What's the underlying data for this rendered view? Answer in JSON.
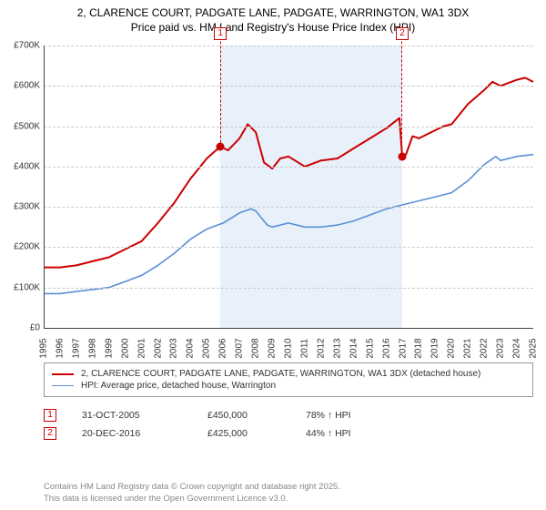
{
  "title": {
    "line1": "2, CLARENCE COURT, PADGATE LANE, PADGATE, WARRINGTON, WA1 3DX",
    "line2": "Price paid vs. HM Land Registry's House Price Index (HPI)"
  },
  "chart": {
    "type": "line",
    "background_color": "#ffffff",
    "grid_color": "#cccccc",
    "axis_color": "#444444",
    "tick_fontsize": 10,
    "ylim": [
      0,
      700000
    ],
    "ytick_step": 100000,
    "ytick_labels": [
      "£0",
      "£100K",
      "£200K",
      "£300K",
      "£400K",
      "£500K",
      "£600K",
      "£700K"
    ],
    "xlim": [
      1995,
      2025
    ],
    "xticks": [
      1995,
      1996,
      1997,
      1998,
      1999,
      2000,
      2001,
      2002,
      2003,
      2004,
      2005,
      2006,
      2007,
      2008,
      2009,
      2010,
      2011,
      2012,
      2013,
      2014,
      2015,
      2016,
      2017,
      2018,
      2019,
      2020,
      2021,
      2022,
      2023,
      2024,
      2025
    ],
    "shade_band": {
      "x_start": 2005.83,
      "x_end": 2016.97,
      "color": "#e8f0fa"
    },
    "series": [
      {
        "name": "price_paid",
        "color": "#cc0000",
        "line_width": 2,
        "points": [
          [
            1995,
            150000
          ],
          [
            1996,
            150000
          ],
          [
            1997,
            155000
          ],
          [
            1998,
            165000
          ],
          [
            1999,
            175000
          ],
          [
            2000,
            195000
          ],
          [
            2001,
            215000
          ],
          [
            2002,
            260000
          ],
          [
            2003,
            310000
          ],
          [
            2004,
            370000
          ],
          [
            2005,
            420000
          ],
          [
            2005.83,
            450000
          ],
          [
            2006.3,
            440000
          ],
          [
            2007,
            470000
          ],
          [
            2007.5,
            505000
          ],
          [
            2008,
            485000
          ],
          [
            2008.5,
            410000
          ],
          [
            2009,
            395000
          ],
          [
            2009.5,
            420000
          ],
          [
            2010,
            425000
          ],
          [
            2011,
            400000
          ],
          [
            2012,
            415000
          ],
          [
            2013,
            420000
          ],
          [
            2014,
            445000
          ],
          [
            2015,
            470000
          ],
          [
            2016,
            495000
          ],
          [
            2016.8,
            520000
          ],
          [
            2016.97,
            425000
          ],
          [
            2017.2,
            430000
          ],
          [
            2017.6,
            475000
          ],
          [
            2018,
            470000
          ],
          [
            2018.5,
            480000
          ],
          [
            2019,
            490000
          ],
          [
            2019.5,
            500000
          ],
          [
            2020,
            505000
          ],
          [
            2020.5,
            530000
          ],
          [
            2021,
            555000
          ],
          [
            2022,
            590000
          ],
          [
            2022.5,
            610000
          ],
          [
            2023,
            600000
          ],
          [
            2024,
            615000
          ],
          [
            2024.5,
            620000
          ],
          [
            2025,
            610000
          ]
        ]
      },
      {
        "name": "hpi",
        "color": "#5b8fd6",
        "line_width": 1.6,
        "points": [
          [
            1995,
            85000
          ],
          [
            1996,
            85000
          ],
          [
            1997,
            90000
          ],
          [
            1998,
            95000
          ],
          [
            1999,
            100000
          ],
          [
            2000,
            115000
          ],
          [
            2001,
            130000
          ],
          [
            2002,
            155000
          ],
          [
            2003,
            185000
          ],
          [
            2004,
            220000
          ],
          [
            2005,
            245000
          ],
          [
            2006,
            260000
          ],
          [
            2007,
            285000
          ],
          [
            2007.7,
            295000
          ],
          [
            2008,
            290000
          ],
          [
            2008.7,
            255000
          ],
          [
            2009,
            250000
          ],
          [
            2010,
            260000
          ],
          [
            2011,
            250000
          ],
          [
            2012,
            250000
          ],
          [
            2013,
            255000
          ],
          [
            2014,
            265000
          ],
          [
            2015,
            280000
          ],
          [
            2016,
            295000
          ],
          [
            2017,
            305000
          ],
          [
            2018,
            315000
          ],
          [
            2019,
            325000
          ],
          [
            2020,
            335000
          ],
          [
            2021,
            365000
          ],
          [
            2022,
            405000
          ],
          [
            2022.7,
            425000
          ],
          [
            2023,
            415000
          ],
          [
            2024,
            425000
          ],
          [
            2025,
            430000
          ]
        ]
      }
    ],
    "sale_markers": [
      {
        "num": "1",
        "x": 2005.83,
        "y": 450000,
        "color": "#cc0000"
      },
      {
        "num": "2",
        "x": 2016.97,
        "y": 425000,
        "color": "#cc0000"
      }
    ]
  },
  "legend": {
    "entries": [
      {
        "color": "#cc0000",
        "width": 2,
        "label": "2, CLARENCE COURT, PADGATE LANE, PADGATE, WARRINGTON, WA1 3DX (detached house)"
      },
      {
        "color": "#5b8fd6",
        "width": 1.6,
        "label": "HPI: Average price, detached house, Warrington"
      }
    ]
  },
  "sales": [
    {
      "num": "1",
      "color": "#cc0000",
      "date": "31-OCT-2005",
      "price": "£450,000",
      "delta": "78% ↑ HPI"
    },
    {
      "num": "2",
      "color": "#cc0000",
      "date": "20-DEC-2016",
      "price": "£425,000",
      "delta": "44% ↑ HPI"
    }
  ],
  "footer": {
    "line1": "Contains HM Land Registry data © Crown copyright and database right 2025.",
    "line2": "This data is licensed under the Open Government Licence v3.0."
  }
}
